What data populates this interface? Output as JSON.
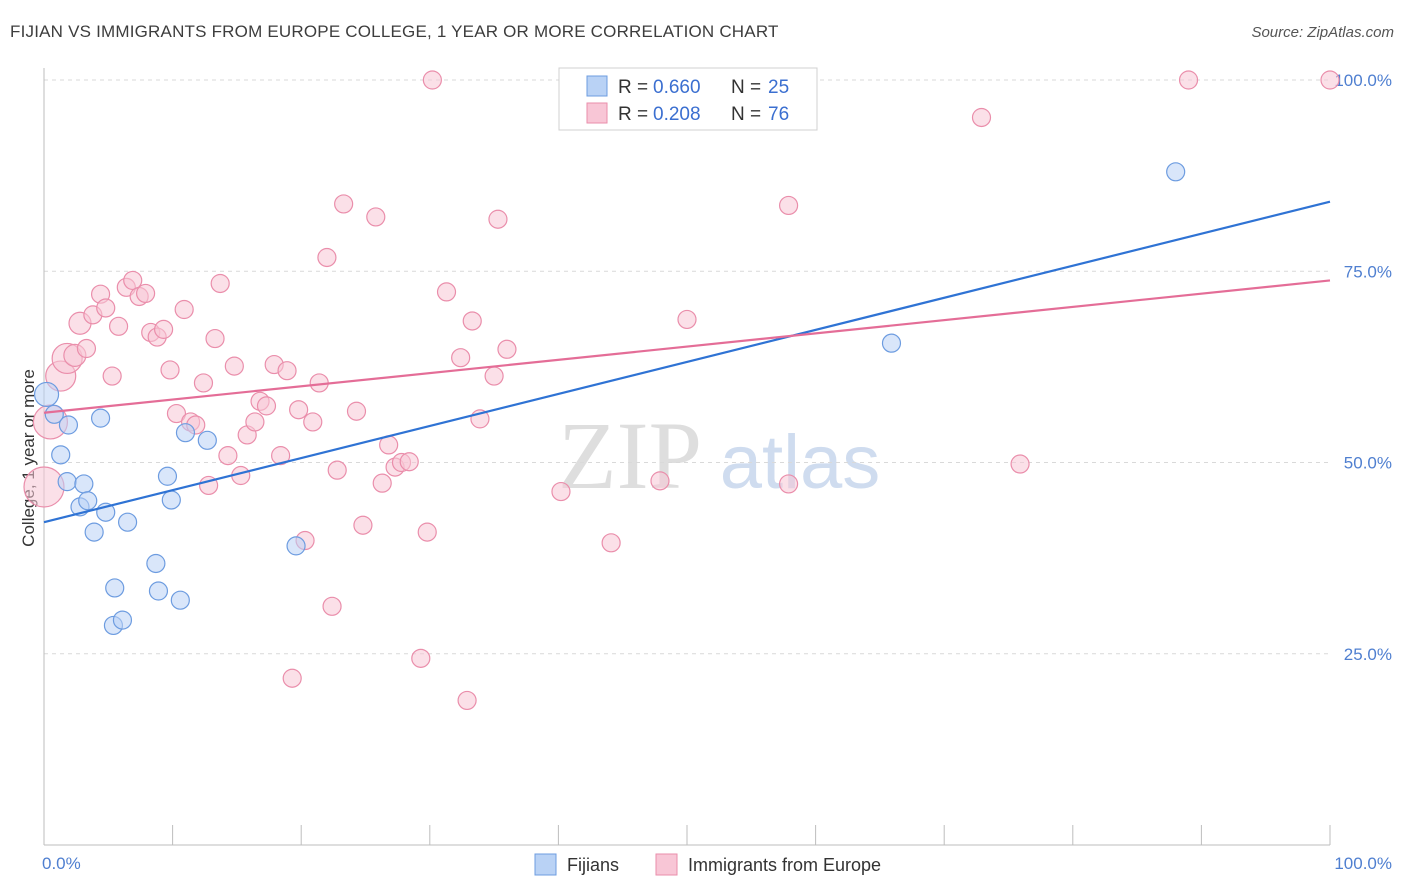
{
  "header": {
    "title": "FIJIAN VS IMMIGRANTS FROM EUROPE COLLEGE, 1 YEAR OR MORE CORRELATION CHART",
    "source": "Source: ZipAtlas.com"
  },
  "watermark": {
    "zip": "ZIP",
    "atlas": "atlas"
  },
  "colors": {
    "fijian_fill": "#b9d2f5",
    "fijian_stroke": "#6d9ce0",
    "fijian_line": "#2f73d4",
    "europe_fill": "#f8c6d6",
    "europe_stroke": "#ea8eab",
    "europe_line": "#e46d97",
    "grid": "#d9d9d9",
    "tick_label": "#4f7fd0"
  },
  "chart_data": {
    "type": "scatter",
    "title": "FIJIAN VS IMMIGRANTS FROM EUROPE COLLEGE, 1 YEAR OR MORE CORRELATION CHART",
    "xlabel": "",
    "ylabel": "College, 1 year or more",
    "xlim": [
      0,
      100
    ],
    "ylim": [
      0,
      100
    ],
    "x_tick_labels": [
      "0.0%",
      "100.0%"
    ],
    "y_ticks": [
      {
        "value": 25,
        "label": "25.0%"
      },
      {
        "value": 50,
        "label": "50.0%"
      },
      {
        "value": 75,
        "label": "75.0%"
      },
      {
        "value": 100,
        "label": "100.0%"
      }
    ],
    "legend": {
      "position": "top-center",
      "entries": [
        {
          "series": "Fijians",
          "r_label": "R =",
          "r_value": "0.660",
          "n_label": "N =",
          "n_value": "25"
        },
        {
          "series": "Immigrants from Europe",
          "r_label": "R =",
          "r_value": "0.208",
          "n_label": "N =",
          "n_value": "76"
        }
      ]
    },
    "series": [
      {
        "name": "Fijians",
        "trend": {
          "x": [
            0,
            100
          ],
          "y": [
            42.2,
            84.1
          ]
        },
        "points": [
          {
            "x": 0.2,
            "y": 58.9,
            "s": 12
          },
          {
            "x": 0.8,
            "y": 56.3,
            "s": 9
          },
          {
            "x": 1.3,
            "y": 51.0,
            "s": 9
          },
          {
            "x": 1.9,
            "y": 54.9,
            "s": 9
          },
          {
            "x": 1.8,
            "y": 47.5,
            "s": 9
          },
          {
            "x": 2.8,
            "y": 44.2,
            "s": 9
          },
          {
            "x": 3.1,
            "y": 47.2,
            "s": 9
          },
          {
            "x": 3.4,
            "y": 45.0,
            "s": 9
          },
          {
            "x": 3.9,
            "y": 40.9,
            "s": 9
          },
          {
            "x": 4.4,
            "y": 55.8,
            "s": 9
          },
          {
            "x": 4.8,
            "y": 43.5,
            "s": 9
          },
          {
            "x": 5.5,
            "y": 33.6,
            "s": 9
          },
          {
            "x": 5.4,
            "y": 28.7,
            "s": 9
          },
          {
            "x": 6.1,
            "y": 29.4,
            "s": 9
          },
          {
            "x": 6.5,
            "y": 42.2,
            "s": 9
          },
          {
            "x": 8.7,
            "y": 36.8,
            "s": 9
          },
          {
            "x": 8.9,
            "y": 33.2,
            "s": 9
          },
          {
            "x": 9.6,
            "y": 48.2,
            "s": 9
          },
          {
            "x": 9.9,
            "y": 45.1,
            "s": 9
          },
          {
            "x": 10.6,
            "y": 32.0,
            "s": 9
          },
          {
            "x": 11.0,
            "y": 53.9,
            "s": 9
          },
          {
            "x": 12.7,
            "y": 52.9,
            "s": 9
          },
          {
            "x": 19.6,
            "y": 39.1,
            "s": 9
          },
          {
            "x": 65.9,
            "y": 65.6,
            "s": 9
          },
          {
            "x": 88.0,
            "y": 88.0,
            "s": 9
          }
        ]
      },
      {
        "name": "Immigrants from Europe",
        "trend": {
          "x": [
            0,
            100
          ],
          "y": [
            56.5,
            73.8
          ]
        },
        "points": [
          {
            "x": 0.0,
            "y": 46.8,
            "s": 20
          },
          {
            "x": 0.5,
            "y": 55.3,
            "s": 17
          },
          {
            "x": 1.3,
            "y": 61.3,
            "s": 15
          },
          {
            "x": 1.8,
            "y": 63.6,
            "s": 15
          },
          {
            "x": 2.4,
            "y": 64.0,
            "s": 11
          },
          {
            "x": 2.8,
            "y": 68.2,
            "s": 11
          },
          {
            "x": 3.3,
            "y": 64.9,
            "s": 9
          },
          {
            "x": 3.8,
            "y": 69.3,
            "s": 9
          },
          {
            "x": 4.4,
            "y": 72.0,
            "s": 9
          },
          {
            "x": 4.8,
            "y": 70.2,
            "s": 9
          },
          {
            "x": 5.3,
            "y": 61.3,
            "s": 9
          },
          {
            "x": 5.8,
            "y": 67.8,
            "s": 9
          },
          {
            "x": 6.4,
            "y": 72.9,
            "s": 9
          },
          {
            "x": 6.9,
            "y": 73.8,
            "s": 9
          },
          {
            "x": 7.4,
            "y": 71.7,
            "s": 9
          },
          {
            "x": 7.9,
            "y": 72.1,
            "s": 9
          },
          {
            "x": 8.3,
            "y": 67.0,
            "s": 9
          },
          {
            "x": 8.8,
            "y": 66.4,
            "s": 9
          },
          {
            "x": 9.3,
            "y": 67.4,
            "s": 9
          },
          {
            "x": 9.8,
            "y": 62.1,
            "s": 9
          },
          {
            "x": 10.3,
            "y": 56.4,
            "s": 9
          },
          {
            "x": 10.9,
            "y": 70.0,
            "s": 9
          },
          {
            "x": 11.4,
            "y": 55.3,
            "s": 9
          },
          {
            "x": 11.8,
            "y": 54.9,
            "s": 9
          },
          {
            "x": 12.4,
            "y": 60.4,
            "s": 9
          },
          {
            "x": 12.8,
            "y": 47.0,
            "s": 9
          },
          {
            "x": 13.3,
            "y": 66.2,
            "s": 9
          },
          {
            "x": 13.7,
            "y": 73.4,
            "s": 9
          },
          {
            "x": 14.3,
            "y": 50.9,
            "s": 9
          },
          {
            "x": 14.8,
            "y": 62.6,
            "s": 9
          },
          {
            "x": 15.3,
            "y": 48.3,
            "s": 9
          },
          {
            "x": 15.8,
            "y": 53.6,
            "s": 9
          },
          {
            "x": 16.4,
            "y": 55.3,
            "s": 9
          },
          {
            "x": 16.8,
            "y": 58.0,
            "s": 9
          },
          {
            "x": 17.3,
            "y": 57.4,
            "s": 9
          },
          {
            "x": 17.9,
            "y": 62.8,
            "s": 9
          },
          {
            "x": 18.4,
            "y": 50.9,
            "s": 9
          },
          {
            "x": 18.9,
            "y": 62.0,
            "s": 9
          },
          {
            "x": 19.3,
            "y": 21.8,
            "s": 9
          },
          {
            "x": 19.8,
            "y": 56.9,
            "s": 9
          },
          {
            "x": 20.3,
            "y": 39.8,
            "s": 9
          },
          {
            "x": 20.9,
            "y": 55.3,
            "s": 9
          },
          {
            "x": 21.4,
            "y": 60.4,
            "s": 9
          },
          {
            "x": 22.0,
            "y": 76.8,
            "s": 9
          },
          {
            "x": 22.4,
            "y": 31.2,
            "s": 9
          },
          {
            "x": 22.8,
            "y": 49.0,
            "s": 9
          },
          {
            "x": 23.3,
            "y": 83.8,
            "s": 9
          },
          {
            "x": 24.3,
            "y": 56.7,
            "s": 9
          },
          {
            "x": 24.8,
            "y": 41.8,
            "s": 9
          },
          {
            "x": 25.8,
            "y": 82.1,
            "s": 9
          },
          {
            "x": 26.3,
            "y": 47.3,
            "s": 9
          },
          {
            "x": 26.8,
            "y": 52.3,
            "s": 9
          },
          {
            "x": 27.3,
            "y": 49.4,
            "s": 9
          },
          {
            "x": 27.8,
            "y": 50.0,
            "s": 9
          },
          {
            "x": 28.4,
            "y": 50.1,
            "s": 9
          },
          {
            "x": 29.3,
            "y": 24.4,
            "s": 9
          },
          {
            "x": 29.8,
            "y": 40.9,
            "s": 9
          },
          {
            "x": 30.2,
            "y": 100.0,
            "s": 9
          },
          {
            "x": 31.3,
            "y": 72.3,
            "s": 9
          },
          {
            "x": 32.4,
            "y": 63.7,
            "s": 9
          },
          {
            "x": 32.9,
            "y": 18.9,
            "s": 9
          },
          {
            "x": 33.3,
            "y": 68.5,
            "s": 9
          },
          {
            "x": 33.9,
            "y": 55.7,
            "s": 9
          },
          {
            "x": 35.0,
            "y": 61.3,
            "s": 9
          },
          {
            "x": 35.3,
            "y": 81.8,
            "s": 9
          },
          {
            "x": 36.0,
            "y": 64.8,
            "s": 9
          },
          {
            "x": 40.2,
            "y": 46.2,
            "s": 9
          },
          {
            "x": 44.1,
            "y": 39.5,
            "s": 9
          },
          {
            "x": 47.9,
            "y": 47.6,
            "s": 9
          },
          {
            "x": 50.0,
            "y": 68.7,
            "s": 9
          },
          {
            "x": 57.9,
            "y": 47.2,
            "s": 9
          },
          {
            "x": 57.9,
            "y": 83.6,
            "s": 9
          },
          {
            "x": 72.9,
            "y": 95.1,
            "s": 9
          },
          {
            "x": 75.9,
            "y": 49.8,
            "s": 9
          },
          {
            "x": 89.0,
            "y": 100.0,
            "s": 9
          },
          {
            "x": 100.0,
            "y": 100.0,
            "s": 9
          }
        ]
      }
    ]
  }
}
